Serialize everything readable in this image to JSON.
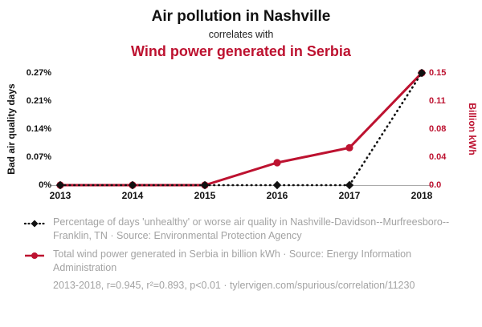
{
  "header": {
    "title": "Air pollution in Nashville",
    "subtitle": "correlates with",
    "title2": "Wind power generated in Serbia"
  },
  "colors": {
    "red": "#bd1230",
    "black": "#111111",
    "axis_line": "#aaaaaa",
    "legend_gray": "#a3a3a3"
  },
  "chart_data": {
    "type": "line",
    "x": [
      2013,
      2014,
      2015,
      2016,
      2017,
      2018
    ],
    "x_ticks": [
      "2013",
      "2014",
      "2015",
      "2016",
      "2017",
      "2018"
    ],
    "left_axis": {
      "label": "Bad air quality days",
      "ticks": [
        "0%",
        "0.07%",
        "0.14%",
        "0.21%",
        "0.27%"
      ],
      "max": 0.27
    },
    "right_axis": {
      "label": "Billion kWh",
      "ticks": [
        "0.0",
        "0.04",
        "0.08",
        "0.11",
        "0.15"
      ],
      "max": 0.15
    },
    "series": [
      {
        "name": "Percentage of days 'unhealthy' or worse air quality in Nashville-Davidson--Murfreesboro--Franklin, TN",
        "axis": "left",
        "style": "dotted-diamond",
        "color_key": "black",
        "values": [
          0,
          0,
          0,
          0,
          0,
          0.27
        ]
      },
      {
        "name": "Total wind power generated in Serbia in billion kWh",
        "axis": "right",
        "style": "solid-circle",
        "color_key": "red",
        "values": [
          0,
          0,
          0,
          0.03,
          0.05,
          0.15
        ]
      }
    ]
  },
  "legend": {
    "items": [
      {
        "text": "Percentage of days 'unhealthy' or worse air quality in Nashville-Davidson--Murfreesboro--Franklin, TN · Source: Environmental Protection Agency"
      },
      {
        "text": "Total wind power generated in Serbia in billion kWh · Source: Energy Information Administration"
      }
    ],
    "footer": "2013-2018, r=0.945, r²=0.893, p<0.01 · tylervigen.com/spurious/correlation/11230"
  }
}
